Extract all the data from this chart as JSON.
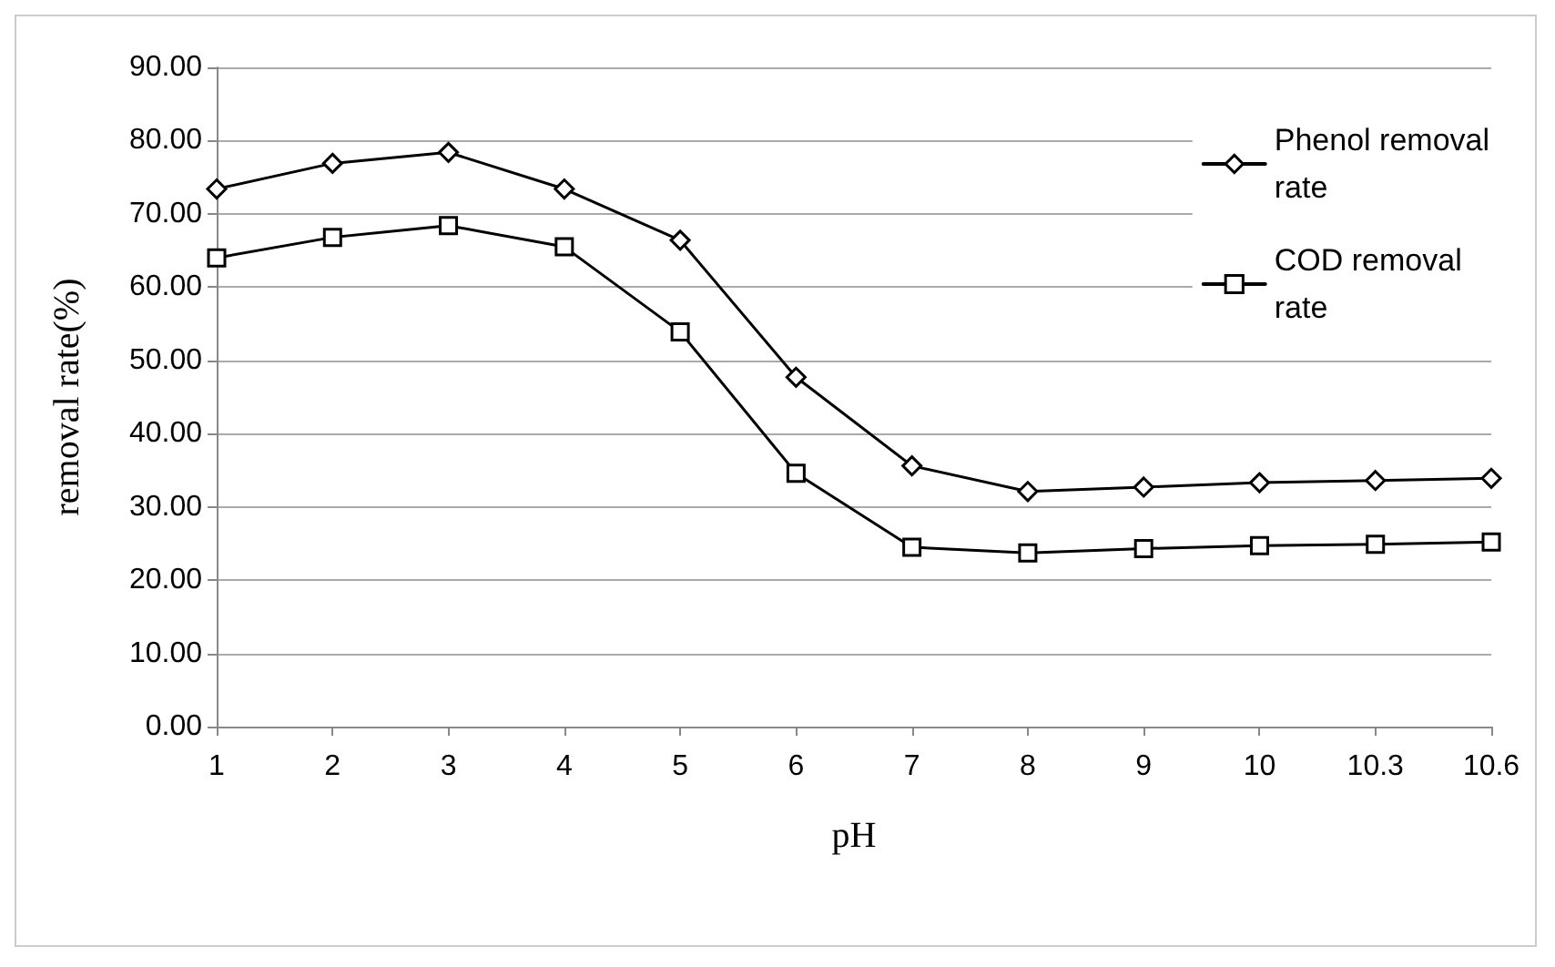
{
  "chart_data": {
    "type": "line",
    "xlabel": "pH",
    "ylabel": "removal rate(%)",
    "categories": [
      "1",
      "2",
      "3",
      "4",
      "5",
      "6",
      "7",
      "8",
      "9",
      "10",
      "10.3",
      "10.6"
    ],
    "series": [
      {
        "name": "Phenol removal rate",
        "color": "#000000",
        "marker": "diamond",
        "values": [
          73.4,
          76.9,
          78.4,
          73.4,
          66.4,
          47.7,
          35.6,
          32.1,
          32.7,
          33.3,
          33.6,
          33.9
        ]
      },
      {
        "name": "COD removal rate",
        "color": "#000000",
        "marker": "square",
        "values": [
          64.0,
          66.8,
          68.4,
          65.5,
          53.9,
          34.6,
          24.5,
          23.7,
          24.3,
          24.7,
          24.9,
          25.2
        ]
      }
    ],
    "ylim": [
      0,
      90
    ],
    "yticks": [
      {
        "value": 0,
        "label": "0.00"
      },
      {
        "value": 10,
        "label": "10.00"
      },
      {
        "value": 20,
        "label": "20.00"
      },
      {
        "value": 30,
        "label": "30.00"
      },
      {
        "value": 40,
        "label": "40.00"
      },
      {
        "value": 50,
        "label": "50.00"
      },
      {
        "value": 60,
        "label": "60.00"
      },
      {
        "value": 70,
        "label": "70.00"
      },
      {
        "value": 80,
        "label": "80.00"
      },
      {
        "value": 90,
        "label": "90.00"
      }
    ],
    "grid": "y",
    "legend": "top right",
    "line_style": "solid"
  }
}
